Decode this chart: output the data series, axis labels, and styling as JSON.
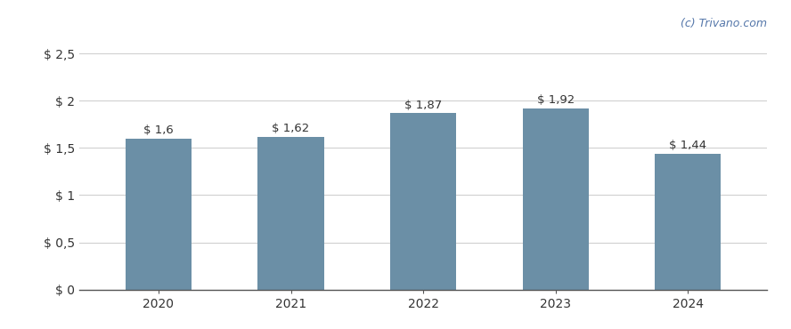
{
  "categories": [
    "2020",
    "2021",
    "2022",
    "2023",
    "2024"
  ],
  "values": [
    1.6,
    1.62,
    1.87,
    1.92,
    1.44
  ],
  "labels": [
    "$ 1,6",
    "$ 1,62",
    "$ 1,87",
    "$ 1,92",
    "$ 1,44"
  ],
  "bar_color": "#6b8fa6",
  "background_color": "#ffffff",
  "grid_color": "#d0d0d0",
  "ytick_labels": [
    "$ 0",
    "$ 0,5",
    "$ 1",
    "$ 1,5",
    "$ 2",
    "$ 2,5"
  ],
  "ytick_values": [
    0,
    0.5,
    1.0,
    1.5,
    2.0,
    2.5
  ],
  "ylim": [
    0,
    2.65
  ],
  "watermark": "(c) Trivano.com",
  "watermark_color": "#5577aa",
  "label_fontsize": 9.5,
  "tick_fontsize": 10,
  "bar_width": 0.5
}
